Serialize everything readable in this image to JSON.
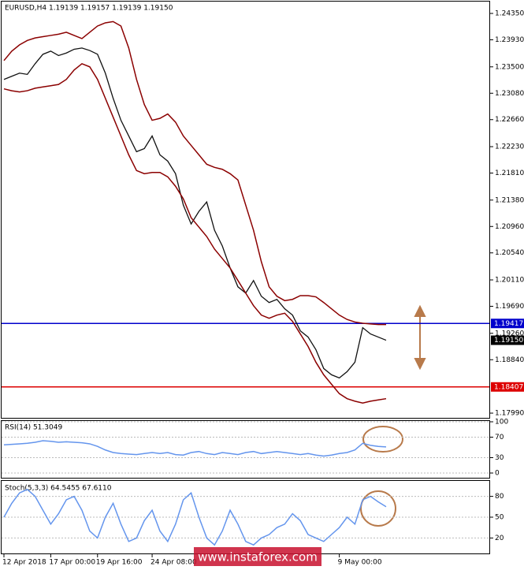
{
  "chart_data": [
    {
      "type": "line",
      "title": "EURUSD,H4  1.19139 1.19157 1.19139 1.19150",
      "ylim": [
        1.17915,
        1.24526
      ],
      "yticks": [
        {
          "value": 1.2435,
          "label": "1.24350"
        },
        {
          "value": 1.2393,
          "label": "1.23930"
        },
        {
          "value": 1.235,
          "label": "1.23500"
        },
        {
          "value": 1.2308,
          "label": "1.23080"
        },
        {
          "value": 1.2266,
          "label": "1.22660"
        },
        {
          "value": 1.2223,
          "label": "1.22230"
        },
        {
          "value": 1.2181,
          "label": "1.21810"
        },
        {
          "value": 1.2138,
          "label": "1.21380"
        },
        {
          "value": 1.2096,
          "label": "1.20960"
        },
        {
          "value": 1.2054,
          "label": "1.20540"
        },
        {
          "value": 1.2011,
          "label": "1.20110"
        },
        {
          "value": 1.1969,
          "label": "1.19690"
        },
        {
          "value": 1.1926,
          "label": "1.19260"
        },
        {
          "value": 1.1884,
          "label": "1.18840"
        },
        {
          "value": 1.1799,
          "label": "1.17990"
        }
      ],
      "levels": [
        {
          "value": 1.19417,
          "value_label": "1.19417",
          "color": "#0000cc"
        },
        {
          "value": 1.18407,
          "value_label": "1.18407",
          "color": "#dd0000"
        },
        {
          "value": 1.1915,
          "value_label": "1.19150",
          "color": "#000000"
        }
      ],
      "series": [
        {
          "color": "#111111",
          "values": [
            1.233,
            1.2335,
            1.234,
            1.2338,
            1.2355,
            1.237,
            1.2375,
            1.2368,
            1.2372,
            1.2378,
            1.238,
            1.2376,
            1.237,
            1.234,
            1.23,
            1.2265,
            1.224,
            1.2215,
            1.222,
            1.224,
            1.221,
            1.22,
            1.218,
            1.213,
            1.21,
            1.212,
            1.2135,
            1.209,
            1.2065,
            1.203,
            1.2,
            1.199,
            1.201,
            1.1985,
            1.1975,
            1.198,
            1.1965,
            1.1955,
            1.193,
            1.192,
            1.19,
            1.187,
            1.186,
            1.1855,
            1.1865,
            1.188,
            1.1935,
            1.1925,
            1.192,
            1.1915
          ]
        },
        {
          "color": "#8b0000",
          "values": [
            1.236,
            1.2375,
            1.2385,
            1.2392,
            1.2396,
            1.2398,
            1.24,
            1.2402,
            1.2405,
            1.24,
            1.2395,
            1.2405,
            1.2415,
            1.242,
            1.2422,
            1.2415,
            1.238,
            1.233,
            1.229,
            1.2265,
            1.2268,
            1.2275,
            1.2262,
            1.224,
            1.2225,
            1.221,
            1.2195,
            1.219,
            1.2187,
            1.218,
            1.217,
            1.213,
            1.209,
            1.204,
            1.2,
            1.1985,
            1.1978,
            1.198,
            1.1986,
            1.1986,
            1.1984,
            1.1975,
            1.1965,
            1.1955,
            1.1948,
            1.1944,
            1.1942,
            1.1941,
            1.194,
            1.194
          ]
        },
        {
          "color": "#8b0000",
          "values": [
            1.2315,
            1.2312,
            1.231,
            1.2312,
            1.2316,
            1.2318,
            1.232,
            1.2322,
            1.233,
            1.2345,
            1.2355,
            1.235,
            1.233,
            1.23,
            1.227,
            1.224,
            1.221,
            1.2185,
            1.218,
            1.2182,
            1.2182,
            1.2175,
            1.216,
            1.214,
            1.211,
            1.2095,
            1.208,
            1.206,
            1.2045,
            1.203,
            1.201,
            1.199,
            1.197,
            1.1955,
            1.195,
            1.1955,
            1.1958,
            1.1945,
            1.1925,
            1.1905,
            1.188,
            1.186,
            1.1845,
            1.183,
            1.1822,
            1.1818,
            1.1815,
            1.1818,
            1.182,
            1.1822
          ]
        }
      ]
    },
    {
      "type": "line",
      "title": "RSI(14) 51.3049",
      "ylim": [
        0,
        100
      ],
      "yticks": [
        100,
        70,
        30,
        0
      ],
      "series": [
        {
          "color": "#6495ed",
          "values": [
            55,
            56,
            57,
            58,
            60,
            63,
            62,
            60,
            61,
            60,
            59,
            57,
            52,
            45,
            40,
            38,
            37,
            36,
            38,
            40,
            38,
            40,
            36,
            35,
            40,
            42,
            38,
            36,
            40,
            38,
            36,
            40,
            42,
            38,
            40,
            42,
            40,
            38,
            36,
            38,
            35,
            33,
            35,
            38,
            40,
            45,
            58,
            54,
            52,
            51
          ]
        }
      ]
    },
    {
      "type": "line",
      "title": "Stoch(5,3,3) 64.5455 67.6110",
      "ylim": [
        0,
        100
      ],
      "yticks": [
        80,
        50,
        20
      ],
      "categories": [
        "12 Apr 2018",
        null,
        null,
        null,
        null,
        null,
        "17 Apr 00:00",
        null,
        null,
        null,
        null,
        null,
        "19 Apr 16:00",
        null,
        null,
        null,
        null,
        null,
        null,
        "24 Apr 08:00",
        null,
        null,
        null,
        null,
        null,
        null,
        null,
        null,
        null,
        null,
        null,
        null,
        null,
        null,
        null,
        null,
        null,
        null,
        null,
        null,
        null,
        null,
        null,
        "9 May 00:00",
        null,
        null,
        null,
        null,
        null,
        null
      ],
      "series": [
        {
          "color": "#6495ed",
          "values": [
            50,
            70,
            85,
            90,
            80,
            60,
            40,
            55,
            75,
            80,
            60,
            30,
            20,
            50,
            70,
            40,
            15,
            20,
            45,
            60,
            30,
            15,
            40,
            75,
            85,
            50,
            20,
            10,
            30,
            60,
            40,
            15,
            10,
            20,
            25,
            35,
            40,
            55,
            45,
            25,
            20,
            15,
            25,
            35,
            50,
            40,
            75,
            80,
            72,
            65
          ]
        }
      ]
    }
  ],
  "watermark": "www.instaforex.com"
}
